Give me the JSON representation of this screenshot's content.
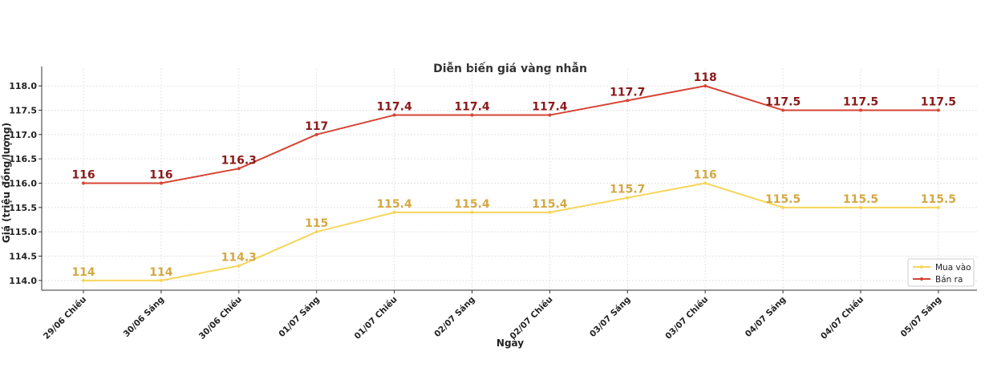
{
  "chart_data": {
    "type": "line",
    "title": "Diễn biến giá vàng nhẫn",
    "xlabel": "Ngày",
    "ylabel": "Giá (triệu đồng/lượng)",
    "categories": [
      "29/06 Chiều",
      "30/06 Sáng",
      "30/06 Chiều",
      "01/07 Sáng",
      "01/07 Chiều",
      "02/07 Sáng",
      "02/07 Chiều",
      "03/07 Sáng",
      "03/07 Chiều",
      "04/07 Sáng",
      "04/07 Chiều",
      "05/07 Sáng"
    ],
    "ylim": [
      113.8,
      118.2
    ],
    "yticks": [
      "114.0",
      "114.5",
      "115.0",
      "115.5",
      "116.0",
      "116.5",
      "117.0",
      "117.5",
      "118.0"
    ],
    "grid": true,
    "legend_position": "bottom-right",
    "series": [
      {
        "name": "Mua vào",
        "color": "#f5d65a",
        "label_color": "#d4a843",
        "values": [
          114,
          114,
          114.3,
          115,
          115.4,
          115.4,
          115.4,
          115.7,
          116,
          115.5,
          115.5,
          115.5
        ],
        "labels": [
          "114",
          "114",
          "114.3",
          "115",
          "115.4",
          "115.4",
          "115.4",
          "115.7",
          "116",
          "115.5",
          "115.5",
          "115.5"
        ]
      },
      {
        "name": "Bán ra",
        "color": "#d64535",
        "label_color": "#8b1a1a",
        "values": [
          116,
          116,
          116.3,
          117,
          117.4,
          117.4,
          117.4,
          117.7,
          118,
          117.5,
          117.5,
          117.5
        ],
        "labels": [
          "116",
          "116",
          "116.3",
          "117",
          "117.4",
          "117.4",
          "117.4",
          "117.7",
          "118",
          "117.5",
          "117.5",
          "117.5"
        ]
      }
    ]
  }
}
